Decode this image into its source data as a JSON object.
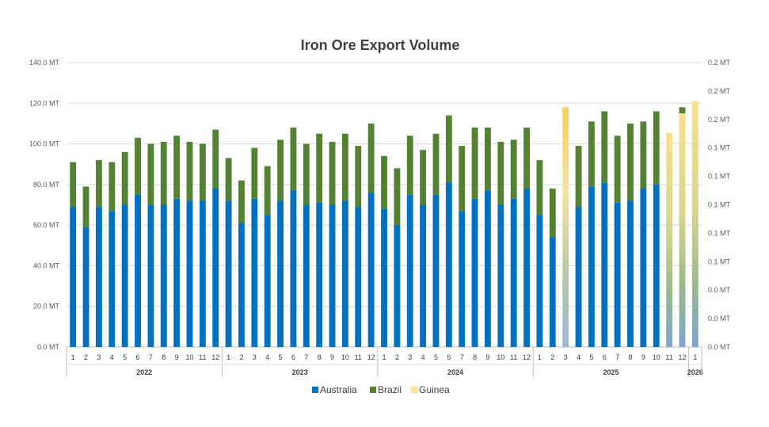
{
  "chart_data": {
    "type": "bar",
    "stacked": true,
    "title": "Iron Ore Export Volume",
    "ylim": [
      0,
      140
    ],
    "y_ticks": [
      "0.0 MT",
      "20.0 MT",
      "40.0 MT",
      "60.0 MT",
      "80.0 MT",
      "100.0 MT",
      "120.0 MT",
      "140.0 MT"
    ],
    "y2_ticks": [
      "0.0 MT",
      "0.0 MT",
      "0.0 MT",
      "0.1 MT",
      "0.1 MT",
      "0.1 MT",
      "0.1 MT",
      "0.1 MT",
      "0.2 MT",
      "0.2 MT",
      "0.2 MT"
    ],
    "colors": {
      "australia": "#0070C0",
      "brazil": "#548235",
      "guinea": "#FFD966"
    },
    "legend": [
      "Australia",
      "Brazil",
      "Guinea"
    ],
    "years": [
      {
        "label": "2022",
        "months": 12
      },
      {
        "label": "2023",
        "months": 12
      },
      {
        "label": "2024",
        "months": 12
      },
      {
        "label": "2025",
        "months": 12
      },
      {
        "label": "2026",
        "months": 1
      }
    ],
    "categories": [
      "1",
      "2",
      "3",
      "4",
      "5",
      "6",
      "7",
      "8",
      "9",
      "10",
      "11",
      "12",
      "1",
      "2",
      "3",
      "4",
      "5",
      "6",
      "7",
      "8",
      "9",
      "10",
      "11",
      "12",
      "1",
      "2",
      "3",
      "4",
      "5",
      "6",
      "7",
      "8",
      "9",
      "10",
      "11",
      "12",
      "1",
      "2",
      "3",
      "4",
      "5",
      "6",
      "7",
      "8",
      "9",
      "10",
      "11",
      "12",
      "1"
    ],
    "series": [
      {
        "name": "Australia",
        "values": [
          69,
          59,
          69,
          67,
          70,
          75,
          70,
          70,
          73,
          72,
          72,
          78,
          72,
          61,
          73,
          65,
          72,
          77,
          70,
          71,
          70,
          72,
          69,
          76,
          68,
          60,
          75,
          70,
          75,
          81,
          67,
          73,
          77,
          70,
          73,
          78,
          65,
          54,
          0,
          69,
          79,
          81,
          71,
          72,
          78,
          80,
          0,
          0,
          0
        ]
      },
      {
        "name": "Brazil",
        "values": [
          22,
          20,
          23,
          24,
          26,
          28,
          30,
          31,
          31,
          29,
          28,
          29,
          21,
          21,
          25,
          24,
          30,
          31,
          30,
          34,
          31,
          33,
          30,
          34,
          26,
          28,
          29,
          27,
          30,
          33,
          32,
          35,
          31,
          31,
          29,
          30,
          27,
          24,
          0,
          30,
          32,
          35,
          33,
          38,
          33,
          36,
          0,
          3,
          0
        ]
      },
      {
        "name": "Guinea",
        "values": [
          0,
          0,
          0,
          0,
          0,
          0,
          0,
          0,
          0,
          0,
          0,
          0,
          0,
          0,
          0,
          0,
          0,
          0,
          0,
          0,
          0,
          0,
          0,
          0,
          0,
          0,
          0,
          0,
          0,
          0,
          0,
          0,
          0,
          0,
          0,
          0,
          0,
          0,
          0,
          0,
          0,
          0,
          0,
          0,
          0,
          0,
          0,
          0,
          0
        ],
        "axis": "secondary"
      }
    ],
    "gradient_bars": [
      {
        "index": 38,
        "total": 118
      },
      {
        "index": 46,
        "total": 105.5
      },
      {
        "index": 47,
        "total": 118
      },
      {
        "index": 48,
        "total": 121
      }
    ]
  }
}
